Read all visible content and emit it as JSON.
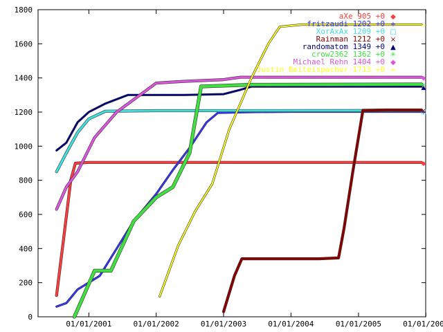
{
  "chart_data": {
    "type": "line",
    "title": "",
    "xlabel": "",
    "ylabel": "",
    "ylim": [
      0,
      1800
    ],
    "xlim": [
      "2000-04-01",
      "2005-12-31"
    ],
    "yticks": [
      0,
      200,
      400,
      600,
      800,
      1000,
      1200,
      1400,
      1600,
      1800
    ],
    "xticks": [
      {
        "date": "2001-01-01",
        "label": "01/01/2001"
      },
      {
        "date": "2002-01-01",
        "label": "01/01/2002"
      },
      {
        "date": "2003-01-01",
        "label": "01/01/2003"
      },
      {
        "date": "2004-01-01",
        "label": "01/01/2004"
      },
      {
        "date": "2005-01-01",
        "label": "01/01/2005"
      },
      {
        "date": "2006-01-01",
        "label": "01/01/2006"
      }
    ],
    "legend_position": "top-right",
    "grid": false,
    "series": [
      {
        "name": "aXe 905 +0",
        "marker": "◆",
        "color": "#ff3b3b",
        "stroke_width": 3,
        "points": [
          [
            "2000-07-10",
            125
          ],
          [
            "2000-08-20",
            480
          ],
          [
            "2000-09-25",
            800
          ],
          [
            "2000-10-20",
            900
          ],
          [
            "2001-01-01",
            905
          ],
          [
            "2002-06-01",
            905
          ],
          [
            "2004-01-01",
            905
          ],
          [
            "2005-09-01",
            905
          ],
          [
            "2005-12-08",
            905
          ]
        ]
      },
      {
        "name": "fritzaudi 1202 +0",
        "marker": "+",
        "color": "#3333ff",
        "stroke_width": 2,
        "points": [
          [
            "2000-07-10",
            60
          ],
          [
            "2000-09-01",
            80
          ],
          [
            "2000-11-01",
            160
          ],
          [
            "2001-03-01",
            240
          ],
          [
            "2001-06-01",
            400
          ],
          [
            "2001-09-01",
            560
          ],
          [
            "2002-01-01",
            720
          ],
          [
            "2002-04-01",
            860
          ],
          [
            "2002-07-01",
            990
          ],
          [
            "2002-10-01",
            1140
          ],
          [
            "2002-12-01",
            1195
          ],
          [
            "2003-06-01",
            1200
          ],
          [
            "2004-01-01",
            1202
          ],
          [
            "2005-12-08",
            1202
          ]
        ]
      },
      {
        "name": "XorAxAx 1209 +0",
        "marker": "□",
        "color": "#40e0e0",
        "stroke_width": 3,
        "points": [
          [
            "2000-07-10",
            850
          ],
          [
            "2000-09-01",
            960
          ],
          [
            "2000-11-01",
            1080
          ],
          [
            "2001-01-01",
            1160
          ],
          [
            "2001-04-01",
            1205
          ],
          [
            "2002-01-01",
            1208
          ],
          [
            "2005-12-08",
            1209
          ]
        ]
      },
      {
        "name": "Rainman 1212 +0",
        "marker": "×",
        "color": "#8b0000",
        "stroke_width": 3,
        "points": [
          [
            "2003-01-01",
            30
          ],
          [
            "2003-03-01",
            240
          ],
          [
            "2003-04-10",
            340
          ],
          [
            "2004-06-01",
            340
          ],
          [
            "2004-09-15",
            345
          ],
          [
            "2004-10-15",
            520
          ],
          [
            "2004-12-01",
            850
          ],
          [
            "2005-01-25",
            1210
          ],
          [
            "2005-06-01",
            1212
          ],
          [
            "2005-12-08",
            1212
          ]
        ]
      },
      {
        "name": "randomatom 1349 +0",
        "marker": "▲",
        "color": "#000080",
        "stroke_width": 2,
        "points": [
          [
            "2000-07-10",
            975
          ],
          [
            "2000-09-01",
            1020
          ],
          [
            "2000-11-01",
            1140
          ],
          [
            "2001-01-01",
            1200
          ],
          [
            "2001-04-01",
            1250
          ],
          [
            "2001-08-01",
            1300
          ],
          [
            "2002-06-01",
            1300
          ],
          [
            "2003-01-01",
            1305
          ],
          [
            "2003-04-01",
            1330
          ],
          [
            "2003-06-01",
            1349
          ],
          [
            "2005-12-08",
            1349
          ]
        ]
      },
      {
        "name": "crow2362 1362 +0",
        "marker": "✳",
        "color": "#40e040",
        "stroke_width": 4,
        "points": [
          [
            "2000-10-15",
            0
          ],
          [
            "2001-02-01",
            270
          ],
          [
            "2001-05-01",
            270
          ],
          [
            "2001-09-01",
            560
          ],
          [
            "2002-01-01",
            700
          ],
          [
            "2002-04-01",
            760
          ],
          [
            "2002-07-01",
            960
          ],
          [
            "2002-09-01",
            1350
          ],
          [
            "2003-06-01",
            1360
          ],
          [
            "2005-12-08",
            1362
          ]
        ]
      },
      {
        "name": "Michael Rehn 1404 +0",
        "marker": "◆",
        "color": "#dd55dd",
        "stroke_width": 3,
        "points": [
          [
            "2000-07-10",
            630
          ],
          [
            "2000-09-01",
            760
          ],
          [
            "2000-11-01",
            850
          ],
          [
            "2001-02-01",
            1050
          ],
          [
            "2001-06-01",
            1200
          ],
          [
            "2002-01-01",
            1370
          ],
          [
            "2002-06-01",
            1380
          ],
          [
            "2003-01-01",
            1390
          ],
          [
            "2003-04-01",
            1404
          ],
          [
            "2005-12-08",
            1404
          ]
        ]
      },
      {
        "name": "Justin Beiteispacher 1713 +0",
        "marker": "+",
        "color": "#ffff22",
        "stroke_width": 2,
        "points": [
          [
            "2002-01-20",
            120
          ],
          [
            "2002-05-01",
            420
          ],
          [
            "2002-08-01",
            620
          ],
          [
            "2002-11-01",
            780
          ],
          [
            "2003-02-01",
            1100
          ],
          [
            "2003-06-01",
            1400
          ],
          [
            "2003-09-01",
            1600
          ],
          [
            "2003-11-01",
            1700
          ],
          [
            "2004-03-01",
            1713
          ],
          [
            "2005-12-08",
            1713
          ]
        ]
      }
    ]
  }
}
